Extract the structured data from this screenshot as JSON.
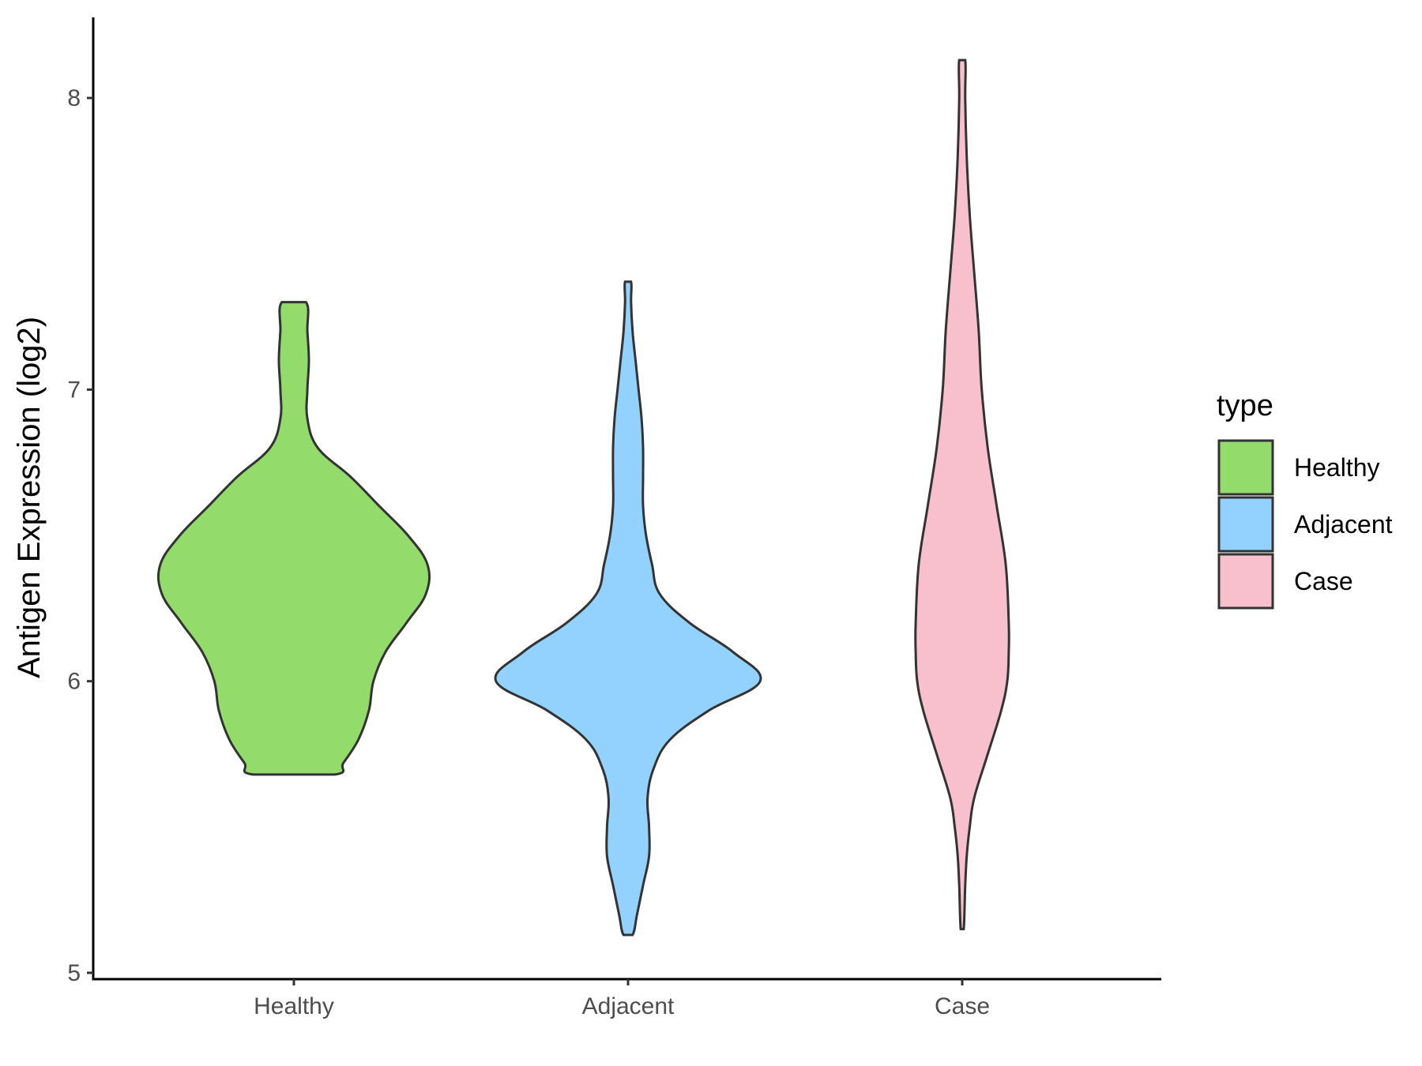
{
  "chart_data": {
    "type": "violin",
    "title": "",
    "xlabel": "",
    "ylabel": "Antigen Expression (log2)",
    "ylim": [
      5,
      8.25
    ],
    "yticks": [
      5,
      6,
      7,
      8
    ],
    "ytick_labels": [
      "5",
      "6",
      "7",
      "8"
    ],
    "categories": [
      "Healthy",
      "Adjacent",
      "Case"
    ],
    "grid": false,
    "legend": {
      "title": "type",
      "position": "right",
      "entries": [
        "Healthy",
        "Adjacent",
        "Case"
      ]
    },
    "series": [
      {
        "name": "Healthy",
        "color": "#93DB6A",
        "min": 5.68,
        "max": 7.3,
        "density": [
          [
            5.68,
            0.27
          ],
          [
            5.72,
            0.33
          ],
          [
            5.8,
            0.43
          ],
          [
            5.9,
            0.5
          ],
          [
            6.0,
            0.53
          ],
          [
            6.1,
            0.61
          ],
          [
            6.2,
            0.75
          ],
          [
            6.3,
            0.88
          ],
          [
            6.4,
            0.89
          ],
          [
            6.5,
            0.76
          ],
          [
            6.6,
            0.57
          ],
          [
            6.7,
            0.38
          ],
          [
            6.8,
            0.16
          ],
          [
            6.9,
            0.09
          ],
          [
            7.0,
            0.09
          ],
          [
            7.1,
            0.1
          ],
          [
            7.2,
            0.09
          ],
          [
            7.3,
            0.08
          ]
        ]
      },
      {
        "name": "Adjacent",
        "color": "#93D2FE",
        "min": 5.13,
        "max": 7.37,
        "density": [
          [
            5.13,
            0.03
          ],
          [
            5.2,
            0.06
          ],
          [
            5.3,
            0.1
          ],
          [
            5.4,
            0.14
          ],
          [
            5.5,
            0.14
          ],
          [
            5.6,
            0.13
          ],
          [
            5.7,
            0.17
          ],
          [
            5.8,
            0.28
          ],
          [
            5.9,
            0.54
          ],
          [
            6.0,
            0.88
          ],
          [
            6.1,
            0.7
          ],
          [
            6.2,
            0.41
          ],
          [
            6.3,
            0.21
          ],
          [
            6.4,
            0.16
          ],
          [
            6.5,
            0.12
          ],
          [
            6.6,
            0.1
          ],
          [
            6.7,
            0.1
          ],
          [
            6.8,
            0.1
          ],
          [
            6.9,
            0.09
          ],
          [
            7.0,
            0.07
          ],
          [
            7.1,
            0.05
          ],
          [
            7.2,
            0.03
          ],
          [
            7.3,
            0.02
          ],
          [
            7.37,
            0.02
          ]
        ]
      },
      {
        "name": "Case",
        "color": "#F7C0CC",
        "min": 5.15,
        "max": 8.13,
        "density": [
          [
            5.15,
            0.01
          ],
          [
            5.3,
            0.02
          ],
          [
            5.4,
            0.03
          ],
          [
            5.5,
            0.05
          ],
          [
            5.6,
            0.08
          ],
          [
            5.75,
            0.17
          ],
          [
            5.9,
            0.26
          ],
          [
            6.0,
            0.3
          ],
          [
            6.1,
            0.31
          ],
          [
            6.2,
            0.31
          ],
          [
            6.4,
            0.29
          ],
          [
            6.6,
            0.23
          ],
          [
            6.8,
            0.17
          ],
          [
            7.0,
            0.13
          ],
          [
            7.2,
            0.11
          ],
          [
            7.4,
            0.08
          ],
          [
            7.6,
            0.05
          ],
          [
            7.8,
            0.03
          ],
          [
            8.0,
            0.02
          ],
          [
            8.13,
            0.02
          ]
        ]
      }
    ]
  }
}
